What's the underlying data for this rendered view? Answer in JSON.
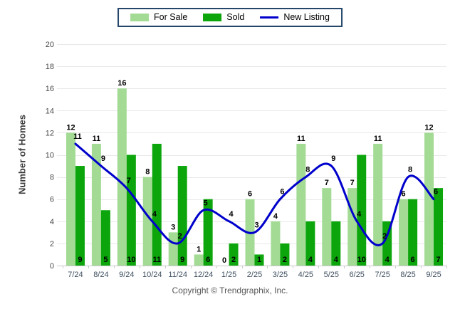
{
  "legend": {
    "border_color": "#24466B",
    "items": [
      {
        "label": "For Sale",
        "swatch": "bar",
        "color": "#A3DB95"
      },
      {
        "label": "Sold",
        "swatch": "bar",
        "color": "#0CA50C"
      },
      {
        "label": "New Listing",
        "swatch": "line",
        "color": "#0000CC"
      }
    ]
  },
  "y_axis": {
    "title": "Number of Homes"
  },
  "footer": {
    "copyright": "Copyright © Trendgraphix, Inc."
  },
  "chart_data": {
    "type": "bar",
    "title": "",
    "categories": [
      "7/24",
      "8/24",
      "9/24",
      "10/24",
      "11/24",
      "12/24",
      "1/25",
      "2/25",
      "3/25",
      "4/25",
      "5/25",
      "6/25",
      "7/25",
      "8/25",
      "9/25"
    ],
    "series": [
      {
        "name": "For Sale",
        "type": "bar",
        "color": "#A3DB95",
        "values": [
          12,
          11,
          16,
          8,
          3,
          1,
          0,
          6,
          4,
          11,
          7,
          7,
          11,
          6,
          12
        ]
      },
      {
        "name": "Sold",
        "type": "bar",
        "color": "#0CA50C",
        "values": [
          9,
          5,
          10,
          11,
          9,
          6,
          2,
          1,
          2,
          4,
          4,
          10,
          4,
          6,
          7
        ]
      },
      {
        "name": "New Listing",
        "type": "line",
        "color": "#0000CC",
        "values": [
          11,
          9,
          7,
          4,
          2,
          5,
          4,
          3,
          6,
          8,
          9,
          4,
          2,
          8,
          6
        ]
      }
    ],
    "xlabel": "",
    "ylabel": "Number of Homes",
    "ylim": [
      0,
      20
    ],
    "yticks": [
      0,
      2,
      4,
      6,
      8,
      10,
      12,
      14,
      16,
      18,
      20
    ],
    "grid": true,
    "legend_position": "top",
    "colors": {
      "grid": "#E9E9E9",
      "axis": "#C9C9C9",
      "tick_label": "#4A4A4A",
      "x_label": "#3F4F5F",
      "value_label": "#000000",
      "background": "#FFFFFF"
    }
  }
}
